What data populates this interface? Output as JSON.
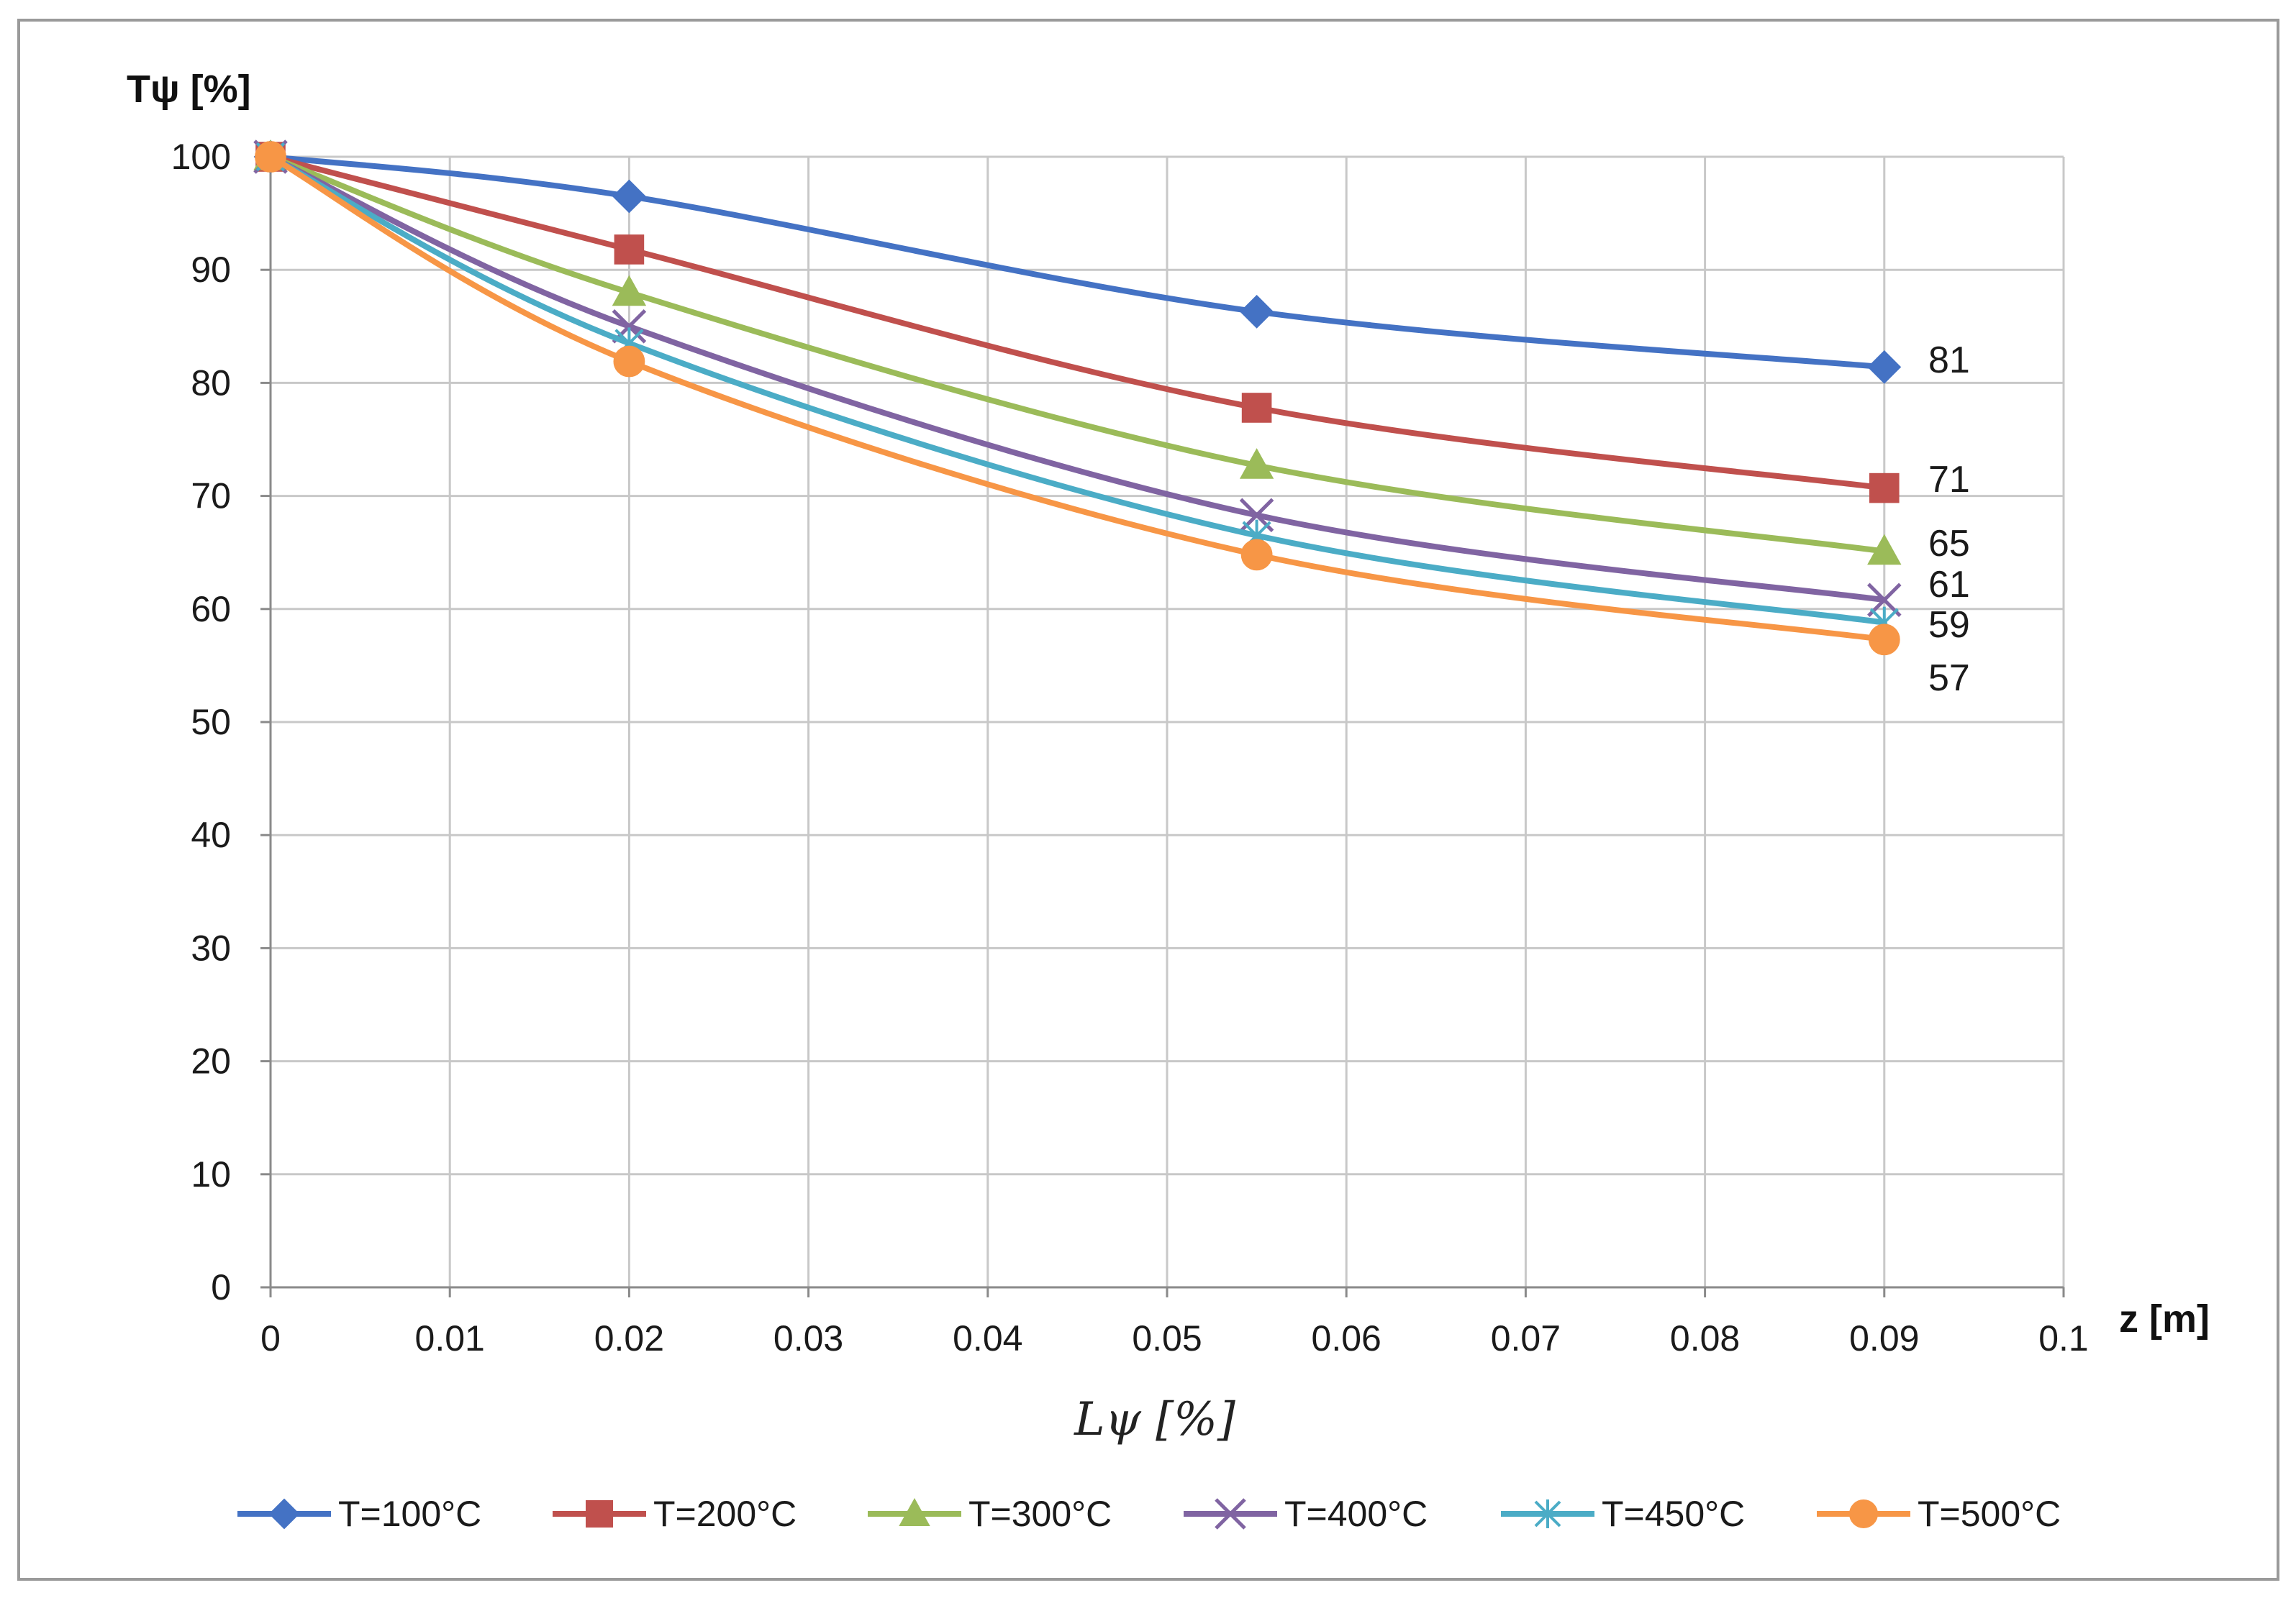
{
  "chart_data": {
    "type": "line",
    "title": "",
    "ylabel": "Tψ [%]",
    "xlabel": "Lψ [%]",
    "xaxis_unit_label": "z [m]",
    "xlim": [
      0,
      0.1
    ],
    "ylim": [
      0,
      100
    ],
    "x_ticks": [
      "0",
      "0.01",
      "0.02",
      "0.03",
      "0.04",
      "0.05",
      "0.06",
      "0.07",
      "0.08",
      "0.09",
      "0.1"
    ],
    "y_ticks": [
      "0",
      "10",
      "20",
      "30",
      "40",
      "50",
      "60",
      "70",
      "80",
      "90",
      "100"
    ],
    "grid": true,
    "legend_position": "bottom",
    "x": [
      0,
      0.02,
      0.055,
      0.09
    ],
    "series": [
      {
        "name": "T=100°C",
        "color": "#4472C4",
        "marker": "diamond",
        "values": [
          100,
          96.5,
          86.3,
          81.4
        ],
        "end_label": "81"
      },
      {
        "name": "T=200°C",
        "color": "#C0504D",
        "marker": "square",
        "values": [
          100,
          91.8,
          77.8,
          70.7
        ],
        "end_label": "71"
      },
      {
        "name": "T=300°C",
        "color": "#9BBB59",
        "marker": "triangle",
        "values": [
          100,
          88.0,
          72.7,
          65.1
        ],
        "end_label": "65"
      },
      {
        "name": "T=400°C",
        "color": "#8064A2",
        "marker": "x",
        "values": [
          100,
          85.0,
          68.3,
          60.8
        ],
        "end_label": "61"
      },
      {
        "name": "T=450°C",
        "color": "#4BACC6",
        "marker": "star",
        "values": [
          100,
          83.5,
          66.5,
          58.8
        ],
        "end_label": "59"
      },
      {
        "name": "T=500°C",
        "color": "#F79646",
        "marker": "circle",
        "values": [
          100,
          81.9,
          64.8,
          57.3
        ],
        "end_label": "57"
      }
    ]
  }
}
